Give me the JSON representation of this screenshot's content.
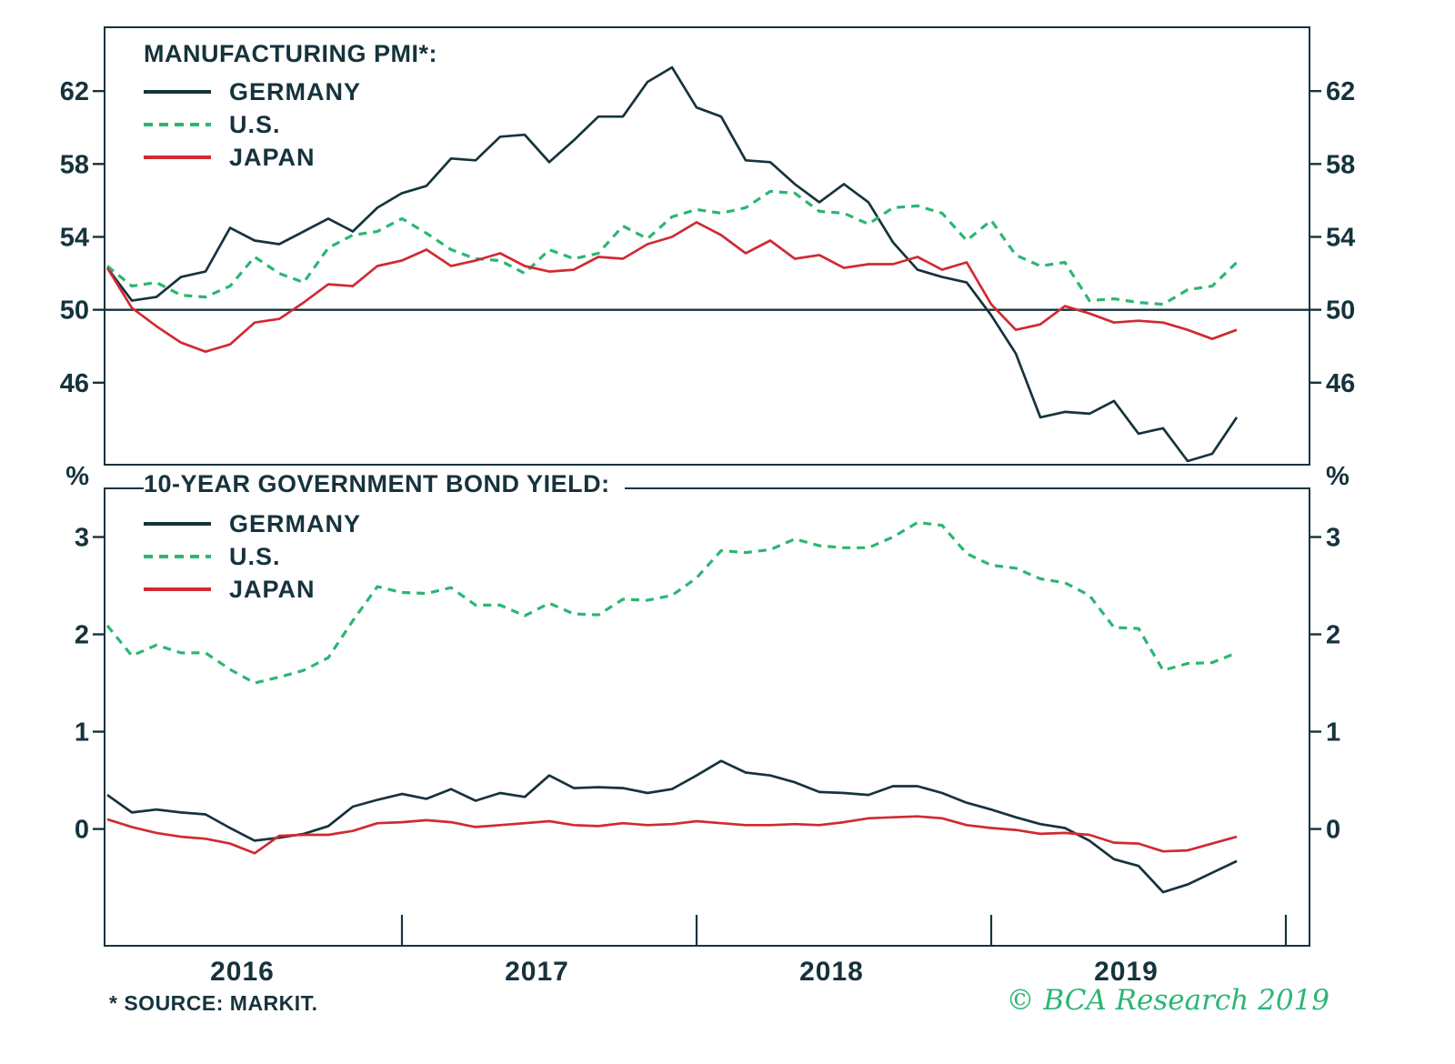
{
  "page": {
    "background": "#ffffff"
  },
  "colors": {
    "frame": "#16333d",
    "text": "#16333d",
    "germany": "#16333d",
    "us": "#2bb673",
    "japan": "#d12a33",
    "credit_green": "#2bb673"
  },
  "footer": {
    "source_note": "* SOURCE: MARKIT.",
    "credit": "© BCA Research 2019"
  },
  "chart_data": {
    "type": "line",
    "x": {
      "freq": "monthly",
      "start": "2016-01",
      "end": "2019-11",
      "year_labels": [
        "2016",
        "2017",
        "2018",
        "2019"
      ]
    },
    "panels": [
      {
        "id": "manufacturing-pmi",
        "title": "MANUFACTURING PMI*:",
        "ylim": [
          41.5,
          65.5
        ],
        "yticks": [
          62,
          58,
          54,
          50,
          46
        ],
        "reference_line": 50,
        "grid": false,
        "legend_position": "top-left",
        "series": [
          {
            "name": "GERMANY",
            "style": "solid",
            "color": "#16333d",
            "values": [
              52.3,
              50.5,
              50.7,
              51.8,
              52.1,
              54.5,
              53.8,
              53.6,
              54.3,
              55.0,
              54.3,
              55.6,
              56.4,
              56.8,
              58.3,
              58.2,
              59.5,
              59.6,
              58.1,
              59.3,
              60.6,
              60.6,
              62.5,
              63.3,
              61.1,
              60.6,
              58.2,
              58.1,
              56.9,
              55.9,
              56.9,
              55.9,
              53.7,
              52.2,
              51.8,
              51.5,
              49.7,
              47.6,
              44.1,
              44.4,
              44.3,
              45.0,
              43.2,
              43.5,
              41.7,
              42.1,
              44.1
            ]
          },
          {
            "name": "U.S.",
            "style": "dashed",
            "color": "#2bb673",
            "values": [
              52.4,
              51.3,
              51.5,
              50.8,
              50.7,
              51.3,
              52.9,
              52.0,
              51.5,
              53.4,
              54.1,
              54.3,
              55.0,
              54.2,
              53.3,
              52.8,
              52.7,
              52.0,
              53.3,
              52.8,
              53.1,
              54.6,
              53.9,
              55.1,
              55.5,
              55.3,
              55.6,
              56.5,
              56.4,
              55.4,
              55.3,
              54.7,
              55.6,
              55.7,
              55.3,
              53.8,
              54.9,
              53.0,
              52.4,
              52.6,
              50.5,
              50.6,
              50.4,
              50.3,
              51.1,
              51.3,
              52.6
            ]
          },
          {
            "name": "JAPAN",
            "style": "solid",
            "color": "#d12a33",
            "values": [
              52.3,
              50.1,
              49.1,
              48.2,
              47.7,
              48.1,
              49.3,
              49.5,
              50.4,
              51.4,
              51.3,
              52.4,
              52.7,
              53.3,
              52.4,
              52.7,
              53.1,
              52.4,
              52.1,
              52.2,
              52.9,
              52.8,
              53.6,
              54.0,
              54.8,
              54.1,
              53.1,
              53.8,
              52.8,
              53.0,
              52.3,
              52.5,
              52.5,
              52.9,
              52.2,
              52.6,
              50.3,
              48.9,
              49.2,
              50.2,
              49.8,
              49.3,
              49.4,
              49.3,
              48.9,
              48.4,
              48.9
            ]
          }
        ]
      },
      {
        "id": "bond-yield",
        "title": "10-YEAR GOVERNMENT BOND YIELD:",
        "unit": "%",
        "ylim": [
          -1.2,
          3.5
        ],
        "yticks": [
          3,
          2,
          1,
          0
        ],
        "grid": false,
        "legend_position": "top-left",
        "series": [
          {
            "name": "GERMANY",
            "style": "solid",
            "color": "#16333d",
            "values": [
              0.35,
              0.17,
              0.2,
              0.17,
              0.15,
              0.01,
              -0.12,
              -0.09,
              -0.05,
              0.03,
              0.23,
              0.3,
              0.36,
              0.31,
              0.41,
              0.29,
              0.37,
              0.33,
              0.55,
              0.42,
              0.43,
              0.42,
              0.37,
              0.41,
              0.55,
              0.7,
              0.58,
              0.55,
              0.48,
              0.38,
              0.37,
              0.35,
              0.44,
              0.44,
              0.37,
              0.27,
              0.2,
              0.12,
              0.05,
              0.01,
              -0.12,
              -0.31,
              -0.38,
              -0.65,
              -0.57,
              -0.45,
              -0.33
            ]
          },
          {
            "name": "U.S.",
            "style": "dashed",
            "color": "#2bb673",
            "values": [
              2.09,
              1.78,
              1.89,
              1.81,
              1.81,
              1.64,
              1.5,
              1.56,
              1.63,
              1.76,
              2.14,
              2.49,
              2.43,
              2.42,
              2.48,
              2.3,
              2.3,
              2.19,
              2.32,
              2.21,
              2.2,
              2.36,
              2.35,
              2.4,
              2.58,
              2.86,
              2.84,
              2.87,
              2.98,
              2.91,
              2.89,
              2.89,
              3.0,
              3.15,
              3.12,
              2.83,
              2.71,
              2.68,
              2.57,
              2.53,
              2.4,
              2.07,
              2.06,
              1.63,
              1.7,
              1.71,
              1.81
            ]
          },
          {
            "name": "JAPAN",
            "style": "solid",
            "color": "#d12a33",
            "values": [
              0.1,
              0.02,
              -0.04,
              -0.08,
              -0.1,
              -0.15,
              -0.25,
              -0.07,
              -0.06,
              -0.06,
              -0.02,
              0.06,
              0.07,
              0.09,
              0.07,
              0.02,
              0.04,
              0.06,
              0.08,
              0.04,
              0.03,
              0.06,
              0.04,
              0.05,
              0.08,
              0.06,
              0.04,
              0.04,
              0.05,
              0.04,
              0.07,
              0.11,
              0.12,
              0.13,
              0.11,
              0.04,
              0.01,
              -0.01,
              -0.05,
              -0.04,
              -0.06,
              -0.14,
              -0.15,
              -0.23,
              -0.22,
              -0.15,
              -0.08
            ]
          }
        ]
      }
    ]
  }
}
